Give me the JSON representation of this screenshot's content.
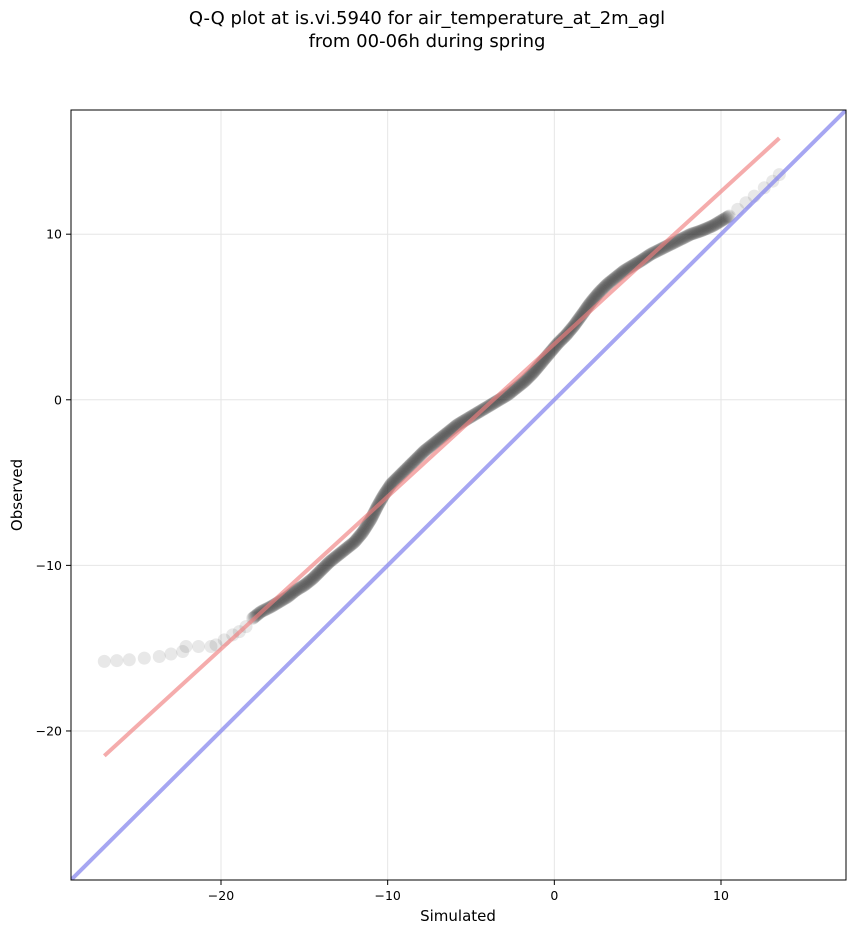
{
  "chart_data": {
    "type": "scatter",
    "title": "Q-Q plot at is.vi.5940 for air_temperature_at_2m_agl",
    "subtitle": "from 00-06h during spring",
    "xlabel": "Simulated",
    "ylabel": "Observed",
    "xlim": [
      -29,
      17.5
    ],
    "ylim": [
      -29,
      17.5
    ],
    "xticks": [
      -20,
      -10,
      0,
      10
    ],
    "yticks": [
      -20,
      -10,
      0,
      10
    ],
    "xtick_labels": [
      "−20",
      "−10",
      "0",
      "10"
    ],
    "ytick_labels": [
      "−20",
      "−10",
      "0",
      "10"
    ],
    "grid": true,
    "colors": {
      "points": "#222222",
      "fit_line": "#f08080",
      "identity_line": "#8888ee"
    },
    "fit_line": {
      "x": [
        -27,
        13.5
      ],
      "y": [
        -21.5,
        15.8
      ]
    },
    "identity_line": {
      "x": [
        -29,
        17.5
      ],
      "y": [
        -29,
        17.5
      ]
    },
    "qq_curve": [
      [
        -27.0,
        -15.8
      ],
      [
        -25.5,
        -15.7
      ],
      [
        -23.7,
        -15.5
      ],
      [
        -22.3,
        -15.2
      ],
      [
        -22.1,
        -14.9
      ],
      [
        -20.6,
        -14.9
      ],
      [
        -20.3,
        -14.8
      ],
      [
        -19.8,
        -14.5
      ],
      [
        -19.3,
        -14.2
      ],
      [
        -18.9,
        -14.0
      ],
      [
        -18.5,
        -13.7
      ],
      [
        -18.1,
        -13.2
      ],
      [
        -17.6,
        -12.8
      ],
      [
        -17.0,
        -12.5
      ],
      [
        -16.5,
        -12.2
      ],
      [
        -16.0,
        -11.9
      ],
      [
        -15.5,
        -11.5
      ],
      [
        -15.0,
        -11.2
      ],
      [
        -14.5,
        -10.8
      ],
      [
        -14.0,
        -10.3
      ],
      [
        -13.5,
        -9.8
      ],
      [
        -13.0,
        -9.4
      ],
      [
        -12.5,
        -9.0
      ],
      [
        -12.0,
        -8.6
      ],
      [
        -11.5,
        -8.0
      ],
      [
        -11.0,
        -7.2
      ],
      [
        -10.6,
        -6.4
      ],
      [
        -10.2,
        -5.7
      ],
      [
        -9.8,
        -5.1
      ],
      [
        -9.3,
        -4.6
      ],
      [
        -8.8,
        -4.1
      ],
      [
        -8.3,
        -3.6
      ],
      [
        -7.8,
        -3.1
      ],
      [
        -7.3,
        -2.7
      ],
      [
        -6.8,
        -2.3
      ],
      [
        -6.3,
        -1.9
      ],
      [
        -5.8,
        -1.5
      ],
      [
        -5.3,
        -1.2
      ],
      [
        -4.8,
        -0.9
      ],
      [
        -4.3,
        -0.6
      ],
      [
        -3.8,
        -0.3
      ],
      [
        -3.3,
        0.0
      ],
      [
        -2.8,
        0.3
      ],
      [
        -2.3,
        0.7
      ],
      [
        -1.8,
        1.1
      ],
      [
        -1.3,
        1.6
      ],
      [
        -0.8,
        2.2
      ],
      [
        -0.3,
        2.8
      ],
      [
        0.2,
        3.4
      ],
      [
        0.7,
        3.9
      ],
      [
        1.2,
        4.5
      ],
      [
        1.7,
        5.2
      ],
      [
        2.2,
        5.9
      ],
      [
        2.7,
        6.5
      ],
      [
        3.2,
        7.0
      ],
      [
        3.7,
        7.4
      ],
      [
        4.2,
        7.8
      ],
      [
        4.7,
        8.1
      ],
      [
        5.2,
        8.4
      ],
      [
        5.8,
        8.8
      ],
      [
        6.4,
        9.1
      ],
      [
        7.0,
        9.4
      ],
      [
        7.6,
        9.7
      ],
      [
        8.2,
        10.0
      ],
      [
        8.8,
        10.2
      ],
      [
        9.5,
        10.5
      ],
      [
        10.0,
        10.8
      ],
      [
        10.5,
        11.1
      ],
      [
        11.0,
        11.5
      ],
      [
        11.5,
        11.9
      ],
      [
        12.0,
        12.3
      ],
      [
        12.6,
        12.8
      ],
      [
        13.1,
        13.2
      ],
      [
        13.5,
        13.6
      ]
    ]
  }
}
